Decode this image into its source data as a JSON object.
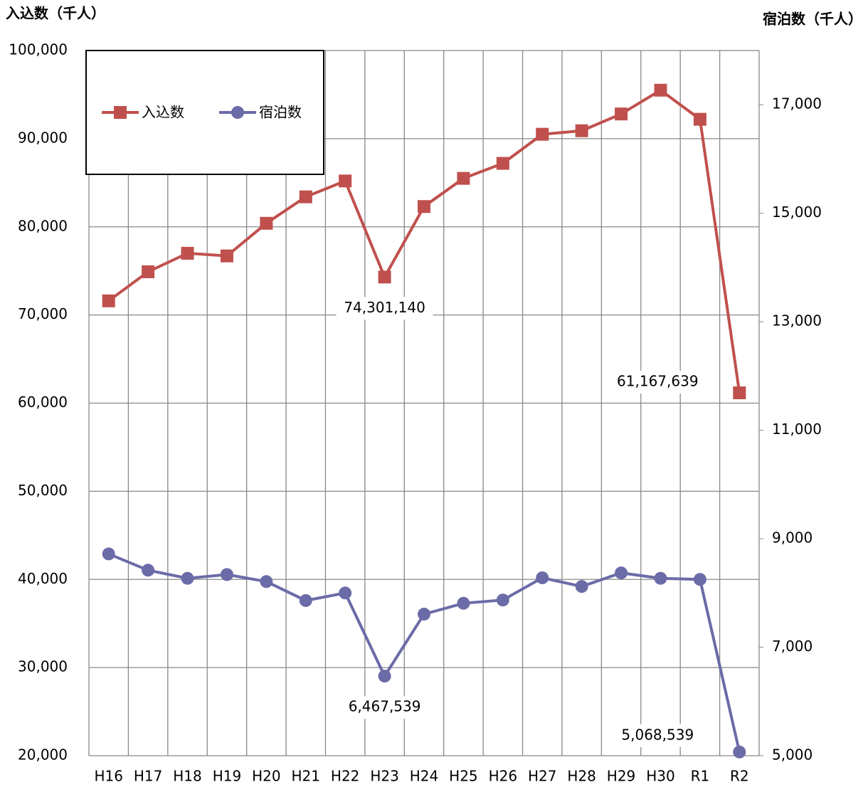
{
  "chart_data": {
    "type": "line",
    "y_label": "入込数（千人）",
    "y2_label": "宿泊数（千人）",
    "categories": [
      "H16",
      "H17",
      "H18",
      "H19",
      "H20",
      "H21",
      "H22",
      "H23",
      "H24",
      "H25",
      "H26",
      "H27",
      "H28",
      "H29",
      "H30",
      "R1",
      "R2"
    ],
    "series": [
      {
        "name": "入込数",
        "color": "#c0504d",
        "marker": "square",
        "values": [
          71600,
          74900,
          77000,
          76700,
          80400,
          83400,
          85200,
          74301.14,
          82300,
          85500,
          87200,
          90500,
          90900,
          92800,
          95500,
          92200,
          61167.639
        ],
        "value_labels": [
          null,
          null,
          null,
          null,
          null,
          null,
          null,
          "74,301,140",
          null,
          null,
          null,
          null,
          null,
          null,
          null,
          null,
          "61,167,639"
        ]
      },
      {
        "name": "宿泊数",
        "color": "#6b6ba8",
        "marker": "circle",
        "axis": "y2",
        "values": [
          8720,
          8420,
          8270,
          8340,
          8210,
          7860,
          8000,
          6467.539,
          7610,
          7810,
          7870,
          8280,
          8120,
          8370,
          8270,
          8250,
          5068.539
        ],
        "value_labels": [
          null,
          null,
          null,
          null,
          null,
          null,
          null,
          "6,467,539",
          null,
          null,
          null,
          null,
          null,
          null,
          null,
          null,
          "5,068,539"
        ]
      }
    ],
    "ylim": [
      20000,
      100000
    ],
    "yticks": [
      {
        "value": 20000,
        "label": "20,000"
      },
      {
        "value": 30000,
        "label": "30,000"
      },
      {
        "value": 40000,
        "label": "40,000"
      },
      {
        "value": 50000,
        "label": "50,000"
      },
      {
        "value": 60000,
        "label": "60,000"
      },
      {
        "value": 70000,
        "label": "70,000"
      },
      {
        "value": 80000,
        "label": "80,000"
      },
      {
        "value": 90000,
        "label": "90,000"
      },
      {
        "value": 100000,
        "label": "100,000"
      }
    ],
    "y2lim": [
      5000,
      18000
    ],
    "y2ticks": [
      {
        "value": 5000,
        "label": "5,000"
      },
      {
        "value": 7000,
        "label": "7,000"
      },
      {
        "value": 9000,
        "label": "9,000"
      },
      {
        "value": 11000,
        "label": "11,000"
      },
      {
        "value": 13000,
        "label": "13,000"
      },
      {
        "value": 15000,
        "label": "15,000"
      },
      {
        "value": 17000,
        "label": "17,000"
      }
    ],
    "grid": true,
    "legend": "upper left"
  }
}
